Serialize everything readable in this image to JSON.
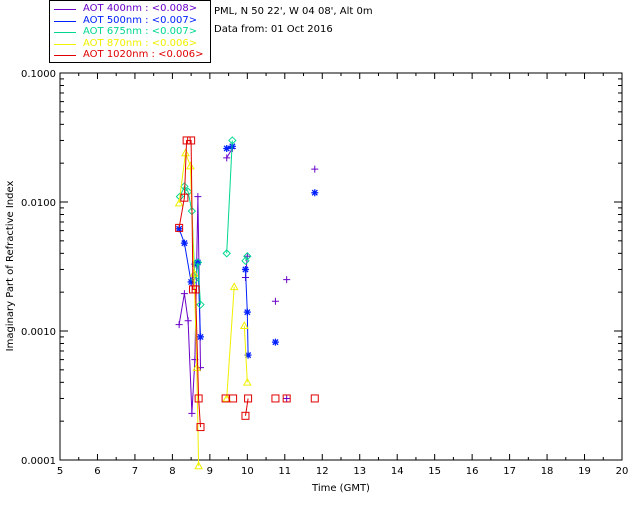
{
  "header": {
    "site_line": "PML, N 50 22', W 04 08', Alt 0m",
    "date_line": "Data from: 01 Oct 2016"
  },
  "legend": [
    {
      "label": "AOT  400nm : <0.008>",
      "color": "#6a00c8"
    },
    {
      "label": "AOT  500nm : <0.007>",
      "color": "#0020ff"
    },
    {
      "label": "AOT  675nm : <0.007>",
      "color": "#00d890"
    },
    {
      "label": "AOT  870nm : <0.006>",
      "color": "#f0f000"
    },
    {
      "label": "AOT 1020nm : <0.006>",
      "color": "#e00000"
    }
  ],
  "chart_data": {
    "type": "line",
    "xlabel": "Time (GMT)",
    "ylabel": "Imaginary Part of Refractive Index",
    "xlim": [
      5,
      20
    ],
    "ylim": [
      0.0001,
      0.1
    ],
    "y_scale": "log",
    "x_ticks": [
      "5",
      "6",
      "7",
      "8",
      "9",
      "10",
      "11",
      "12",
      "13",
      "14",
      "15",
      "16",
      "17",
      "18",
      "19",
      "20"
    ],
    "y_ticks": [
      "0.0001",
      "0.0010",
      "0.0100",
      "0.1000"
    ],
    "y_tick_values": [
      0.0001,
      0.001,
      0.01,
      0.1
    ],
    "series": [
      {
        "name": "AOT  400nm : <0.008>",
        "marker": "plus",
        "color": "#6a00c8",
        "segments": [
          [
            [
              8.18,
              0.00112
            ],
            [
              8.32,
              0.00195
            ],
            [
              8.42,
              0.0012
            ],
            [
              8.52,
              0.00023
            ],
            [
              8.6,
              0.0006
            ],
            [
              8.68,
              0.011
            ],
            [
              8.75,
              0.00052
            ]
          ],
          [
            [
              9.45,
              0.022
            ],
            [
              9.6,
              0.026
            ]
          ],
          [
            [
              9.95,
              0.0026
            ],
            [
              10.0,
              0.0038
            ]
          ]
        ],
        "points": [
          [
            10.75,
            0.0017
          ],
          [
            11.05,
            0.0025
          ],
          [
            11.05,
            0.0003
          ],
          [
            11.8,
            0.018
          ]
        ]
      },
      {
        "name": "AOT  500nm : <0.007>",
        "marker": "asterisk",
        "color": "#0020ff",
        "segments": [
          [
            [
              8.18,
              0.0062
            ],
            [
              8.32,
              0.0048
            ],
            [
              8.5,
              0.0024
            ],
            [
              8.6,
              0.0033
            ],
            [
              8.68,
              0.0034
            ],
            [
              8.75,
              0.0009
            ]
          ],
          [
            [
              9.45,
              0.026
            ],
            [
              9.6,
              0.027
            ]
          ],
          [
            [
              9.95,
              0.003
            ],
            [
              10.0,
              0.0014
            ],
            [
              10.02,
              0.00065
            ]
          ]
        ],
        "points": [
          [
            10.75,
            0.00082
          ],
          [
            11.8,
            0.0118
          ]
        ]
      },
      {
        "name": "AOT  675nm : <0.007>",
        "marker": "diamond",
        "color": "#00d890",
        "segments": [
          [
            [
              8.2,
              0.011
            ],
            [
              8.32,
              0.0132
            ],
            [
              8.42,
              0.012
            ],
            [
              8.52,
              0.0085
            ],
            [
              8.6,
              0.0025
            ],
            [
              8.68,
              0.0034
            ],
            [
              8.75,
              0.0016
            ]
          ],
          [
            [
              9.45,
              0.004
            ],
            [
              9.6,
              0.03
            ]
          ],
          [
            [
              9.95,
              0.0035
            ],
            [
              10.0,
              0.0038
            ]
          ]
        ],
        "points": []
      },
      {
        "name": "AOT  870nm : <0.006>",
        "marker": "triangle",
        "color": "#f0f000",
        "segments": [
          [
            [
              8.18,
              0.0098
            ],
            [
              8.35,
              0.024
            ],
            [
              8.48,
              0.019
            ],
            [
              8.58,
              0.0028
            ],
            [
              8.65,
              0.00052
            ],
            [
              8.7,
              9e-05
            ]
          ],
          [
            [
              9.45,
              0.0003
            ],
            [
              9.65,
              0.0022
            ]
          ],
          [
            [
              9.92,
              0.0011
            ],
            [
              10.0,
              0.0004
            ]
          ]
        ],
        "points": []
      },
      {
        "name": "AOT 1020nm : <0.006>",
        "marker": "square",
        "color": "#e00000",
        "segments": [
          [
            [
              8.18,
              0.0063
            ],
            [
              8.32,
              0.0108
            ],
            [
              8.38,
              0.03
            ],
            [
              8.5,
              0.03
            ],
            [
              8.55,
              0.0021
            ],
            [
              8.62,
              0.0021
            ],
            [
              8.7,
              0.0003
            ],
            [
              8.75,
              0.00018
            ]
          ],
          [
            [
              9.95,
              0.00022
            ],
            [
              10.02,
              0.0003
            ]
          ]
        ],
        "points": [
          [
            9.42,
            0.0003
          ],
          [
            9.62,
            0.0003
          ],
          [
            10.75,
            0.0003
          ],
          [
            11.05,
            0.0003
          ],
          [
            11.8,
            0.0003
          ]
        ]
      }
    ]
  }
}
